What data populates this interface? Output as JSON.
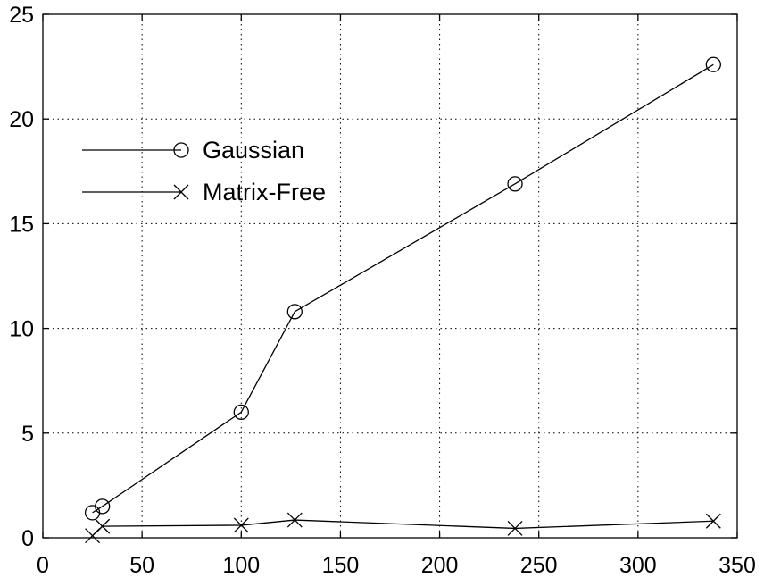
{
  "chart_data": {
    "type": "line",
    "title": "",
    "xlabel": "",
    "ylabel": "",
    "xlim": [
      0,
      350
    ],
    "ylim": [
      0,
      25
    ],
    "x_ticks": [
      0,
      50,
      100,
      150,
      200,
      250,
      300,
      350
    ],
    "y_ticks": [
      0,
      5,
      10,
      15,
      20,
      25
    ],
    "grid": true,
    "legend_position": "upper-left",
    "series": [
      {
        "name": "Gaussian",
        "marker": "circle",
        "color": "#000000",
        "x": [
          25,
          30,
          100,
          127,
          238,
          338
        ],
        "y": [
          1.2,
          1.5,
          6.0,
          10.8,
          16.9,
          22.6
        ]
      },
      {
        "name": "Matrix-Free",
        "marker": "x",
        "color": "#000000",
        "x": [
          25,
          30,
          100,
          127,
          238,
          338
        ],
        "y": [
          0.1,
          0.55,
          0.6,
          0.85,
          0.45,
          0.8
        ]
      }
    ]
  }
}
